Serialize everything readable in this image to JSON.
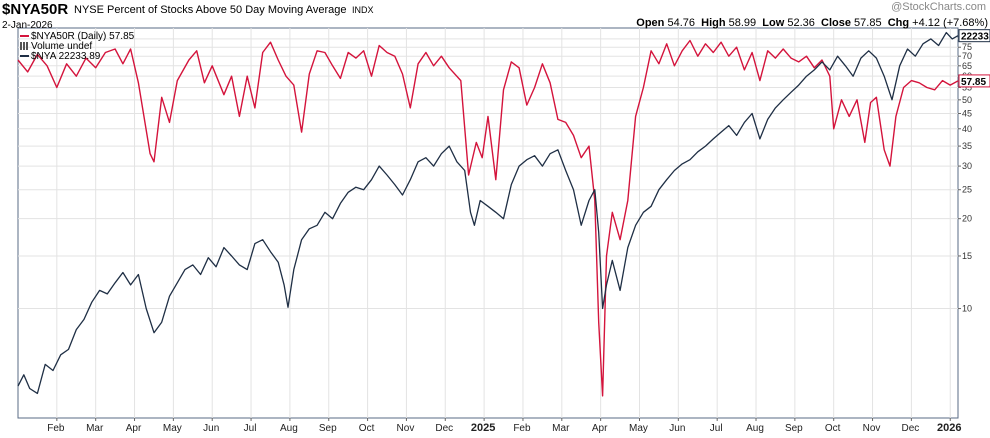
{
  "header": {
    "symbol": "$NYA50R",
    "description": "NYSE Percent of Stocks Above 50 Day Moving Average",
    "exchange": "INDX",
    "date": "2-Jan-2026",
    "open_label": "Open",
    "open": "54.76",
    "high_label": "High",
    "high": "58.99",
    "low_label": "Low",
    "low": "52.36",
    "close_label": "Close",
    "close": "57.85",
    "chg_label": "Chg",
    "chg": "+4.12 (+7.68%)",
    "watermark": "@StockCharts.com"
  },
  "legend": [
    {
      "text": "$NYA50R (Daily) 57.85",
      "color": "#d4143c",
      "marker": "line"
    },
    {
      "text": "Volume undef",
      "color": "#555555",
      "marker": "bars"
    },
    {
      "text": "$NYA 22233.89",
      "color": "#1f2f45",
      "marker": "line"
    }
  ],
  "colors": {
    "percent_line": "#d4143c",
    "nya_line": "#1f2f45",
    "grid": "#e3e3e3",
    "frame": "#5a6b85"
  },
  "chart_data": {
    "type": "line",
    "x_axis": {
      "ticks": [
        {
          "label": "Feb",
          "x": 1.0
        },
        {
          "label": "Mar",
          "x": 2.0
        },
        {
          "label": "Apr",
          "x": 3.0
        },
        {
          "label": "May",
          "x": 4.0
        },
        {
          "label": "Jun",
          "x": 5.0
        },
        {
          "label": "Jul",
          "x": 6.0
        },
        {
          "label": "Aug",
          "x": 7.0
        },
        {
          "label": "Sep",
          "x": 8.0
        },
        {
          "label": "Oct",
          "x": 9.0
        },
        {
          "label": "Nov",
          "x": 10.0
        },
        {
          "label": "Dec",
          "x": 11.0
        },
        {
          "label": "2025",
          "x": 12.0,
          "bold": true
        },
        {
          "label": "Feb",
          "x": 13.0
        },
        {
          "label": "Mar",
          "x": 14.0
        },
        {
          "label": "Apr",
          "x": 15.0
        },
        {
          "label": "May",
          "x": 16.0
        },
        {
          "label": "Jun",
          "x": 17.0
        },
        {
          "label": "Jul",
          "x": 18.0
        },
        {
          "label": "Aug",
          "x": 19.0
        },
        {
          "label": "Sep",
          "x": 20.0
        },
        {
          "label": "Oct",
          "x": 21.0
        },
        {
          "label": "Nov",
          "x": 22.0
        },
        {
          "label": "Dec",
          "x": 23.0
        },
        {
          "label": "2026",
          "x": 24.0,
          "bold": true
        }
      ],
      "range": [
        0.0,
        24.2
      ]
    },
    "y_axis": {
      "scale": "log",
      "range": [
        4.3,
        87
      ],
      "ticks": [
        10,
        15,
        20,
        25,
        30,
        35,
        40,
        45,
        50,
        55,
        60,
        65,
        70,
        75,
        80
      ],
      "grid": true
    },
    "tags": [
      {
        "label": "22233",
        "y": 82,
        "color": "#1f2f45"
      },
      {
        "label": "57.85",
        "y": 57.85,
        "color": "#d4143c"
      }
    ],
    "series": [
      {
        "name": "$NYA50R (Daily) 57.85",
        "color": "#d4143c",
        "points": [
          [
            0.0,
            68
          ],
          [
            0.25,
            62
          ],
          [
            0.5,
            71
          ],
          [
            0.75,
            65
          ],
          [
            1.0,
            55
          ],
          [
            1.25,
            66
          ],
          [
            1.5,
            60
          ],
          [
            1.75,
            69
          ],
          [
            2.0,
            64
          ],
          [
            2.25,
            72
          ],
          [
            2.5,
            74
          ],
          [
            2.7,
            66
          ],
          [
            2.9,
            74
          ],
          [
            3.1,
            57
          ],
          [
            3.4,
            33
          ],
          [
            3.5,
            31
          ],
          [
            3.7,
            51
          ],
          [
            3.9,
            42
          ],
          [
            4.1,
            58
          ],
          [
            4.4,
            68
          ],
          [
            4.6,
            73
          ],
          [
            4.8,
            57
          ],
          [
            5.0,
            65
          ],
          [
            5.3,
            52
          ],
          [
            5.5,
            60
          ],
          [
            5.7,
            44
          ],
          [
            5.9,
            60
          ],
          [
            6.1,
            47
          ],
          [
            6.3,
            72
          ],
          [
            6.5,
            78
          ],
          [
            6.7,
            68
          ],
          [
            6.9,
            60
          ],
          [
            7.1,
            56
          ],
          [
            7.3,
            39
          ],
          [
            7.5,
            61
          ],
          [
            7.7,
            73
          ],
          [
            7.9,
            72
          ],
          [
            8.1,
            65
          ],
          [
            8.3,
            59
          ],
          [
            8.5,
            72
          ],
          [
            8.7,
            69
          ],
          [
            8.9,
            73
          ],
          [
            9.1,
            60
          ],
          [
            9.3,
            76
          ],
          [
            9.5,
            72
          ],
          [
            9.7,
            70
          ],
          [
            9.9,
            61
          ],
          [
            10.1,
            47
          ],
          [
            10.3,
            66
          ],
          [
            10.5,
            72
          ],
          [
            10.7,
            65
          ],
          [
            10.9,
            70
          ],
          [
            11.1,
            64
          ],
          [
            11.4,
            58
          ],
          [
            11.6,
            28
          ],
          [
            11.8,
            36
          ],
          [
            11.95,
            32
          ],
          [
            12.1,
            44
          ],
          [
            12.3,
            27
          ],
          [
            12.5,
            54
          ],
          [
            12.7,
            67
          ],
          [
            12.9,
            64
          ],
          [
            13.1,
            48
          ],
          [
            13.3,
            55
          ],
          [
            13.5,
            66
          ],
          [
            13.7,
            57
          ],
          [
            13.9,
            43
          ],
          [
            14.1,
            42
          ],
          [
            14.3,
            38
          ],
          [
            14.5,
            32
          ],
          [
            14.7,
            35
          ],
          [
            14.85,
            23
          ],
          [
            14.95,
            9
          ],
          [
            15.05,
            5.1
          ],
          [
            15.15,
            15
          ],
          [
            15.3,
            21
          ],
          [
            15.5,
            17
          ],
          [
            15.7,
            23
          ],
          [
            15.9,
            44
          ],
          [
            16.1,
            55
          ],
          [
            16.3,
            73
          ],
          [
            16.5,
            66
          ],
          [
            16.7,
            77
          ],
          [
            16.9,
            65
          ],
          [
            17.1,
            73
          ],
          [
            17.3,
            79
          ],
          [
            17.5,
            70
          ],
          [
            17.7,
            77
          ],
          [
            17.9,
            72
          ],
          [
            18.1,
            78
          ],
          [
            18.3,
            70
          ],
          [
            18.5,
            75
          ],
          [
            18.7,
            63
          ],
          [
            18.9,
            72
          ],
          [
            19.1,
            58
          ],
          [
            19.3,
            73
          ],
          [
            19.5,
            69
          ],
          [
            19.7,
            74
          ],
          [
            19.9,
            69
          ],
          [
            20.1,
            67
          ],
          [
            20.3,
            70
          ],
          [
            20.5,
            64
          ],
          [
            20.7,
            68
          ],
          [
            20.9,
            60
          ],
          [
            21.0,
            40
          ],
          [
            21.2,
            50
          ],
          [
            21.4,
            44
          ],
          [
            21.6,
            50
          ],
          [
            21.8,
            36
          ],
          [
            21.95,
            49
          ],
          [
            22.1,
            51
          ],
          [
            22.3,
            34
          ],
          [
            22.45,
            30
          ],
          [
            22.6,
            44
          ],
          [
            22.8,
            55
          ],
          [
            23.0,
            58
          ],
          [
            23.2,
            57
          ],
          [
            23.4,
            55
          ],
          [
            23.6,
            54
          ],
          [
            23.8,
            58
          ],
          [
            24.0,
            56
          ],
          [
            24.2,
            57.85
          ]
        ]
      },
      {
        "name": "$NYA 22233.89",
        "color": "#1f2f45",
        "points": [
          [
            0.0,
            5.5
          ],
          [
            0.15,
            6.0
          ],
          [
            0.3,
            5.4
          ],
          [
            0.5,
            5.2
          ],
          [
            0.7,
            6.5
          ],
          [
            0.9,
            6.2
          ],
          [
            1.1,
            7.0
          ],
          [
            1.3,
            7.3
          ],
          [
            1.5,
            8.5
          ],
          [
            1.7,
            9.2
          ],
          [
            1.9,
            10.5
          ],
          [
            2.1,
            11.5
          ],
          [
            2.3,
            11.2
          ],
          [
            2.5,
            12.2
          ],
          [
            2.7,
            13.2
          ],
          [
            2.9,
            12.0
          ],
          [
            3.1,
            13.0
          ],
          [
            3.3,
            10.0
          ],
          [
            3.5,
            8.3
          ],
          [
            3.7,
            9.0
          ],
          [
            3.9,
            11.0
          ],
          [
            4.1,
            12.2
          ],
          [
            4.3,
            13.5
          ],
          [
            4.5,
            14.0
          ],
          [
            4.7,
            13.0
          ],
          [
            4.9,
            14.8
          ],
          [
            5.1,
            13.8
          ],
          [
            5.3,
            16.0
          ],
          [
            5.5,
            15.0
          ],
          [
            5.7,
            14.0
          ],
          [
            5.9,
            13.5
          ],
          [
            6.1,
            16.5
          ],
          [
            6.3,
            17.0
          ],
          [
            6.5,
            15.5
          ],
          [
            6.7,
            14.3
          ],
          [
            6.85,
            12.0
          ],
          [
            6.95,
            10.1
          ],
          [
            7.1,
            13.5
          ],
          [
            7.3,
            17.0
          ],
          [
            7.5,
            18.5
          ],
          [
            7.7,
            19.0
          ],
          [
            7.9,
            21.0
          ],
          [
            8.1,
            20.0
          ],
          [
            8.3,
            22.5
          ],
          [
            8.5,
            24.5
          ],
          [
            8.7,
            25.5
          ],
          [
            8.9,
            25.0
          ],
          [
            9.1,
            27.0
          ],
          [
            9.3,
            30.0
          ],
          [
            9.5,
            28.0
          ],
          [
            9.7,
            26.0
          ],
          [
            9.9,
            24.0
          ],
          [
            10.1,
            27.0
          ],
          [
            10.3,
            31.0
          ],
          [
            10.5,
            32.0
          ],
          [
            10.7,
            30.0
          ],
          [
            10.9,
            33.0
          ],
          [
            11.1,
            35.0
          ],
          [
            11.3,
            31.0
          ],
          [
            11.5,
            29.0
          ],
          [
            11.65,
            21.0
          ],
          [
            11.75,
            19.0
          ],
          [
            11.9,
            23.0
          ],
          [
            12.1,
            22.0
          ],
          [
            12.3,
            21.0
          ],
          [
            12.5,
            20.0
          ],
          [
            12.7,
            26.0
          ],
          [
            12.9,
            30.0
          ],
          [
            13.1,
            31.5
          ],
          [
            13.3,
            32.5
          ],
          [
            13.5,
            30.0
          ],
          [
            13.7,
            33.0
          ],
          [
            13.9,
            34.0
          ],
          [
            14.1,
            29.0
          ],
          [
            14.3,
            25.0
          ],
          [
            14.5,
            19.0
          ],
          [
            14.7,
            23.0
          ],
          [
            14.85,
            25.0
          ],
          [
            14.95,
            18.0
          ],
          [
            15.05,
            10.0
          ],
          [
            15.15,
            12.0
          ],
          [
            15.3,
            14.5
          ],
          [
            15.5,
            11.5
          ],
          [
            15.7,
            16.0
          ],
          [
            15.9,
            19.0
          ],
          [
            16.1,
            21.0
          ],
          [
            16.3,
            22.0
          ],
          [
            16.5,
            25.0
          ],
          [
            16.7,
            27.0
          ],
          [
            16.9,
            29.0
          ],
          [
            17.1,
            30.5
          ],
          [
            17.3,
            31.5
          ],
          [
            17.5,
            33.5
          ],
          [
            17.7,
            35.0
          ],
          [
            17.9,
            37.0
          ],
          [
            18.1,
            39.0
          ],
          [
            18.3,
            41.0
          ],
          [
            18.5,
            38.0
          ],
          [
            18.7,
            42.0
          ],
          [
            18.9,
            45.0
          ],
          [
            19.1,
            37.0
          ],
          [
            19.3,
            43.0
          ],
          [
            19.5,
            47.0
          ],
          [
            19.7,
            50.0
          ],
          [
            19.9,
            53.0
          ],
          [
            20.1,
            56.0
          ],
          [
            20.3,
            60.0
          ],
          [
            20.5,
            63.0
          ],
          [
            20.7,
            67.0
          ],
          [
            20.9,
            63.0
          ],
          [
            21.1,
            70.0
          ],
          [
            21.3,
            65.0
          ],
          [
            21.5,
            60.0
          ],
          [
            21.7,
            69.0
          ],
          [
            21.9,
            73.0
          ],
          [
            22.1,
            69.0
          ],
          [
            22.3,
            60.0
          ],
          [
            22.5,
            50.0
          ],
          [
            22.7,
            65.0
          ],
          [
            22.9,
            74.0
          ],
          [
            23.1,
            70.0
          ],
          [
            23.3,
            77.0
          ],
          [
            23.5,
            80.0
          ],
          [
            23.7,
            76.0
          ],
          [
            23.9,
            84.0
          ],
          [
            24.05,
            80.0
          ],
          [
            24.2,
            82.0
          ]
        ]
      }
    ]
  }
}
